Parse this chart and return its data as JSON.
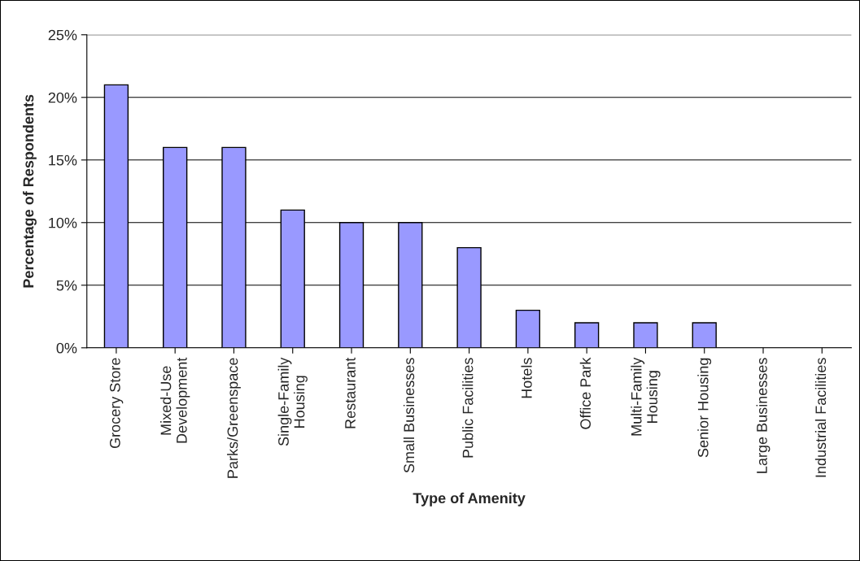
{
  "chart_data": {
    "type": "bar",
    "xlabel": "Type of Amenity",
    "ylabel": "Percentage of Respondents",
    "categories": [
      "Grocery Store",
      "Mixed-Use\nDevelopment",
      "Parks/Greenspace",
      "Single-Family\nHousing",
      "Restaurant",
      "Small Businesses",
      "Public Facilities",
      "Hotels",
      "Office Park",
      "Multi-Family\nHousing",
      "Senior Housing",
      "Large Businesses",
      "Industrial Facilities"
    ],
    "values": [
      21,
      16,
      16,
      11,
      10,
      10,
      8,
      3,
      2,
      2,
      2,
      0,
      0
    ],
    "color": "#9999ff",
    "ylim": [
      0,
      25
    ],
    "yticks": [
      {
        "value": 0,
        "label": "0%"
      },
      {
        "value": 5,
        "label": "5%"
      },
      {
        "value": 10,
        "label": "10%"
      },
      {
        "value": 15,
        "label": "15%"
      },
      {
        "value": 20,
        "label": "20%"
      },
      {
        "value": 25,
        "label": "25%"
      }
    ],
    "grid": "y",
    "legend": false
  }
}
